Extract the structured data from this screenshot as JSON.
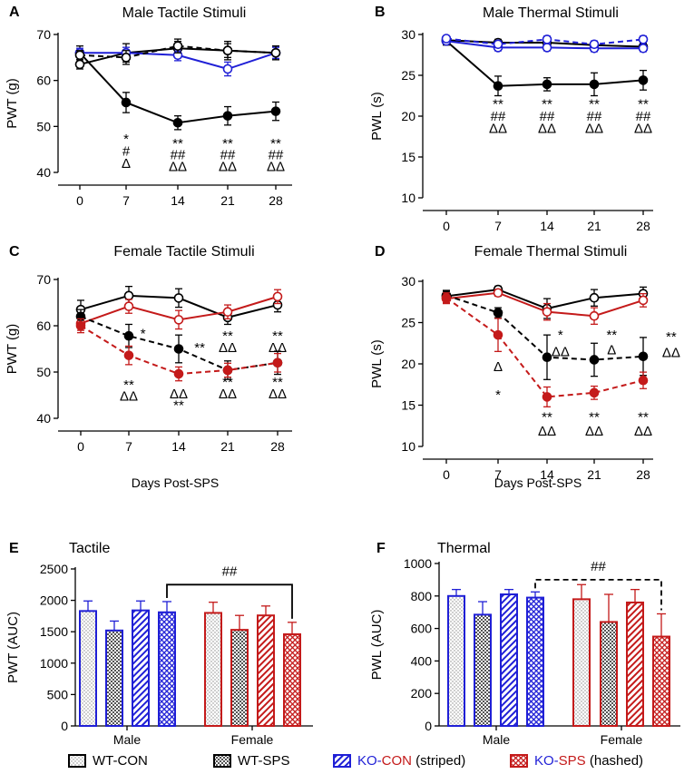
{
  "legend": [
    {
      "label": "WT-CON",
      "parts": [
        {
          "text": "WT-CON",
          "color": "#000000"
        }
      ],
      "key": "wtcon"
    },
    {
      "label": "WT-SPS",
      "parts": [
        {
          "text": "WT-SPS",
          "color": "#000000"
        }
      ],
      "key": "wtsps"
    },
    {
      "label": "KO-CON (striped)",
      "parts": [
        {
          "text": "KO-",
          "color": "#1f1fd6"
        },
        {
          "text": "CON",
          "color": "#c41a1a"
        },
        {
          "text": " (striped)",
          "color": "#000000"
        }
      ],
      "key": "kocon"
    },
    {
      "label": "KO-SPS (hashed)",
      "parts": [
        {
          "text": "KO-",
          "color": "#1f1fd6"
        },
        {
          "text": "SPS",
          "color": "#c41a1a"
        },
        {
          "text": " (hashed)",
          "color": "#000000"
        }
      ],
      "key": "kosps"
    }
  ],
  "colors": {
    "black": "#000000",
    "blue": "#1f1fd6",
    "red": "#c41a1a"
  },
  "chart_data": [
    {
      "id": "A",
      "panel_label": "A",
      "type": "line",
      "title": "Male Tactile Stimuli",
      "ylabel": "PWT (g)",
      "xlabel": "",
      "x": [
        0,
        7,
        14,
        21,
        28
      ],
      "ylim": [
        40,
        70
      ],
      "yticks": [
        40,
        50,
        60,
        70
      ],
      "series": [
        {
          "name": "WT-CON",
          "color": "#000000",
          "dashed": false,
          "open": true,
          "values": [
            63.5,
            66,
            67,
            66.5,
            66
          ],
          "err": [
            1,
            2,
            1.5,
            2,
            1.5
          ]
        },
        {
          "name": "WT-SPS",
          "color": "#000000",
          "dashed": false,
          "open": false,
          "values": [
            66,
            55.2,
            50.8,
            52.3,
            53.3
          ],
          "err": [
            1.5,
            2.2,
            1.5,
            2,
            2
          ]
        },
        {
          "name": "KO-CON",
          "color": "#1f1fd6",
          "dashed": false,
          "open": true,
          "values": [
            66,
            66,
            65.5,
            62.5,
            66
          ],
          "err": [
            1,
            1.2,
            1.2,
            1.5,
            1.2
          ]
        },
        {
          "name": "KO-SPS",
          "color": "#000000",
          "dashed": true,
          "open": true,
          "values": [
            65.5,
            65,
            67.5,
            66.5,
            66
          ],
          "err": [
            1,
            1.5,
            1.5,
            1.5,
            1.5
          ]
        }
      ],
      "annotations": [
        {
          "x": 7,
          "y": 47.5,
          "text": "*"
        },
        {
          "x": 7,
          "y": 44.8,
          "text": "#"
        },
        {
          "x": 7,
          "y": 42.2,
          "text": "Δ"
        },
        {
          "x": 14,
          "y": 46.5,
          "text": "**"
        },
        {
          "x": 14,
          "y": 44,
          "text": "##"
        },
        {
          "x": 14,
          "y": 41.5,
          "text": "ΔΔ"
        },
        {
          "x": 21,
          "y": 46.5,
          "text": "**"
        },
        {
          "x": 21,
          "y": 44,
          "text": "##"
        },
        {
          "x": 21,
          "y": 41.5,
          "text": "ΔΔ"
        },
        {
          "x": 28,
          "y": 46.5,
          "text": "**"
        },
        {
          "x": 28,
          "y": 44,
          "text": "##"
        },
        {
          "x": 28,
          "y": 41.5,
          "text": "ΔΔ"
        }
      ]
    },
    {
      "id": "B",
      "panel_label": "B",
      "type": "line",
      "title": "Male Thermal Stimuli",
      "ylabel": "PWL (s)",
      "xlabel": "",
      "x": [
        0,
        7,
        14,
        21,
        28
      ],
      "ylim": [
        10,
        30
      ],
      "yticks": [
        10,
        15,
        20,
        25,
        30
      ],
      "series": [
        {
          "name": "WT-CON",
          "color": "#000000",
          "dashed": false,
          "open": true,
          "values": [
            29.3,
            29.0,
            29.0,
            28.7,
            28.5
          ],
          "err": [
            0.4,
            0.4,
            0.4,
            0.4,
            0.4
          ]
        },
        {
          "name": "WT-SPS",
          "color": "#000000",
          "dashed": false,
          "open": false,
          "values": [
            29.2,
            23.7,
            23.9,
            23.9,
            24.4
          ],
          "err": [
            0.5,
            1.2,
            0.8,
            1.4,
            1.2
          ]
        },
        {
          "name": "KO-CON",
          "color": "#1f1fd6",
          "dashed": false,
          "open": true,
          "values": [
            29.2,
            28.4,
            28.4,
            28.3,
            28.3
          ],
          "err": [
            0.3,
            0.4,
            0.4,
            0.4,
            0.4
          ]
        },
        {
          "name": "KO-SPS",
          "color": "#1f1fd6",
          "dashed": true,
          "open": true,
          "values": [
            29.5,
            28.8,
            29.4,
            28.8,
            29.4
          ],
          "err": [
            0.3,
            0.4,
            0.4,
            0.4,
            0.4
          ]
        }
      ],
      "annotations": [
        {
          "x": 7,
          "y": 21.6,
          "text": "**"
        },
        {
          "x": 7,
          "y": 20.1,
          "text": "##"
        },
        {
          "x": 7,
          "y": 18.6,
          "text": "ΔΔ"
        },
        {
          "x": 14,
          "y": 21.6,
          "text": "**"
        },
        {
          "x": 14,
          "y": 20.1,
          "text": "##"
        },
        {
          "x": 14,
          "y": 18.6,
          "text": "ΔΔ"
        },
        {
          "x": 21,
          "y": 21.6,
          "text": "**"
        },
        {
          "x": 21,
          "y": 20.1,
          "text": "##"
        },
        {
          "x": 21,
          "y": 18.6,
          "text": "ΔΔ"
        },
        {
          "x": 28,
          "y": 21.6,
          "text": "**"
        },
        {
          "x": 28,
          "y": 20.1,
          "text": "##"
        },
        {
          "x": 28,
          "y": 18.6,
          "text": "ΔΔ"
        }
      ]
    },
    {
      "id": "C",
      "panel_label": "C",
      "type": "line",
      "title": "Female Tactile Stimuli",
      "ylabel": "PWT (g)",
      "xlabel": "Days Post-SPS",
      "x": [
        0,
        7,
        14,
        21,
        28
      ],
      "ylim": [
        40,
        70
      ],
      "yticks": [
        40,
        50,
        60,
        70
      ],
      "series": [
        {
          "name": "WT-CON",
          "color": "#000000",
          "dashed": false,
          "open": true,
          "values": [
            63.5,
            66.5,
            66,
            61.8,
            64.5
          ],
          "err": [
            2,
            2,
            2,
            1.5,
            1.5
          ]
        },
        {
          "name": "KO-CON",
          "color": "#c41a1a",
          "dashed": false,
          "open": true,
          "values": [
            60.5,
            64.2,
            61.3,
            63,
            66.3
          ],
          "err": [
            1.5,
            1.5,
            2,
            1.5,
            1.5
          ]
        },
        {
          "name": "WT-SPS",
          "color": "#000000",
          "dashed": true,
          "open": false,
          "values": [
            62,
            57.8,
            55,
            50.4,
            52
          ],
          "err": [
            1.5,
            2.5,
            3,
            2,
            2.5
          ]
        },
        {
          "name": "KO-SPS",
          "color": "#c41a1a",
          "dashed": true,
          "open": false,
          "values": [
            60,
            53.6,
            49.6,
            50.4,
            52
          ],
          "err": [
            1.5,
            2,
            1.5,
            1.5,
            2
          ]
        }
      ],
      "annotations": [
        {
          "x": 9,
          "y": 58.5,
          "text": "*"
        },
        {
          "x": 7,
          "y": 47.5,
          "text": "**"
        },
        {
          "x": 7,
          "y": 45,
          "text": "ΔΔ"
        },
        {
          "x": 17,
          "y": 55.5,
          "text": "**"
        },
        {
          "x": 14,
          "y": 45.5,
          "text": "ΔΔ"
        },
        {
          "x": 14,
          "y": 43,
          "text": "**"
        },
        {
          "x": 21,
          "y": 58,
          "text": "**"
        },
        {
          "x": 21,
          "y": 55.5,
          "text": "ΔΔ"
        },
        {
          "x": 21,
          "y": 48,
          "text": "**"
        },
        {
          "x": 21,
          "y": 45.5,
          "text": "ΔΔ"
        },
        {
          "x": 28,
          "y": 58,
          "text": "**"
        },
        {
          "x": 28,
          "y": 55.5,
          "text": "ΔΔ"
        },
        {
          "x": 28,
          "y": 48,
          "text": "**"
        },
        {
          "x": 28,
          "y": 45.5,
          "text": "ΔΔ"
        }
      ]
    },
    {
      "id": "D",
      "panel_label": "D",
      "type": "line",
      "title": "Female Thermal Stimuli",
      "ylabel": "PWL (s)",
      "xlabel": "Days Post-SPS",
      "x": [
        0,
        7,
        14,
        21,
        28
      ],
      "ylim": [
        10,
        30
      ],
      "yticks": [
        10,
        15,
        20,
        25,
        30
      ],
      "series": [
        {
          "name": "WT-CON",
          "color": "#000000",
          "dashed": false,
          "open": true,
          "values": [
            28.2,
            29,
            26.7,
            28,
            28.5
          ],
          "err": [
            0.6,
            0.4,
            1.2,
            1.0,
            0.8
          ]
        },
        {
          "name": "KO-CON",
          "color": "#c41a1a",
          "dashed": false,
          "open": true,
          "values": [
            27.9,
            28.6,
            26.3,
            25.8,
            27.7
          ],
          "err": [
            0.6,
            0.4,
            1.0,
            1.0,
            0.8
          ]
        },
        {
          "name": "WT-SPS",
          "color": "#000000",
          "dashed": true,
          "open": false,
          "values": [
            28.3,
            26.2,
            20.8,
            20.5,
            20.9
          ],
          "err": [
            0.6,
            0.6,
            2.7,
            2.0,
            2.3
          ]
        },
        {
          "name": "KO-SPS",
          "color": "#c41a1a",
          "dashed": true,
          "open": false,
          "values": [
            28,
            23.5,
            16,
            16.5,
            18
          ],
          "err": [
            0.6,
            2.0,
            1.2,
            0.8,
            1.0
          ]
        }
      ],
      "annotations": [
        {
          "x": 7,
          "y": 19.8,
          "text": "Δ"
        },
        {
          "x": 7,
          "y": 16.4,
          "text": "*"
        },
        {
          "x": 16,
          "y": 23.6,
          "text": "*"
        },
        {
          "x": 16,
          "y": 21.6,
          "text": "ΔΔ"
        },
        {
          "x": 23.5,
          "y": 23.6,
          "text": "**"
        },
        {
          "x": 23.5,
          "y": 21.8,
          "text": "Δ"
        },
        {
          "x": 32,
          "y": 23.4,
          "text": "**"
        },
        {
          "x": 32,
          "y": 21.5,
          "text": "ΔΔ"
        },
        {
          "x": 14,
          "y": 13.7,
          "text": "**"
        },
        {
          "x": 14,
          "y": 12,
          "text": "ΔΔ"
        },
        {
          "x": 21,
          "y": 13.7,
          "text": "**"
        },
        {
          "x": 21,
          "y": 12,
          "text": "ΔΔ"
        },
        {
          "x": 28,
          "y": 13.7,
          "text": "**"
        },
        {
          "x": 28,
          "y": 12,
          "text": "ΔΔ"
        }
      ]
    },
    {
      "id": "E",
      "panel_label": "E",
      "type": "bar",
      "title": "Tactile",
      "ylabel": "PWT (AUC)",
      "xlabel": "",
      "groups": [
        "Male",
        "Female"
      ],
      "ylim": [
        0,
        2500
      ],
      "yticks": [
        0,
        500,
        1000,
        1500,
        2000,
        2500
      ],
      "bars": [
        {
          "group": "Male",
          "name": "WT-CON",
          "value": 1830,
          "err": 160,
          "color": "#1f1fd6",
          "pattern": "dots"
        },
        {
          "group": "Male",
          "name": "WT-SPS",
          "value": 1520,
          "err": 150,
          "color": "#1f1fd6",
          "pattern": "check"
        },
        {
          "group": "Male",
          "name": "KO-CON",
          "value": 1840,
          "err": 150,
          "color": "#1f1fd6",
          "pattern": "stripe"
        },
        {
          "group": "Male",
          "name": "KO-SPS",
          "value": 1810,
          "err": 170,
          "color": "#1f1fd6",
          "pattern": "hash"
        },
        {
          "group": "Female",
          "name": "WT-CON",
          "value": 1800,
          "err": 170,
          "color": "#c41a1a",
          "pattern": "dots"
        },
        {
          "group": "Female",
          "name": "WT-SPS",
          "value": 1530,
          "err": 230,
          "color": "#c41a1a",
          "pattern": "check"
        },
        {
          "group": "Female",
          "name": "KO-CON",
          "value": 1760,
          "err": 150,
          "color": "#c41a1a",
          "pattern": "stripe"
        },
        {
          "group": "Female",
          "name": "KO-SPS",
          "value": 1460,
          "err": 190,
          "color": "#c41a1a",
          "pattern": "hash"
        }
      ],
      "bracket": {
        "from": 3,
        "to": 7,
        "value": 2250,
        "text": "##",
        "dashed": false
      }
    },
    {
      "id": "F",
      "panel_label": "F",
      "type": "bar",
      "title": "Thermal",
      "ylabel": "PWL (AUC)",
      "xlabel": "",
      "groups": [
        "Male",
        "Female"
      ],
      "ylim": [
        0,
        1000
      ],
      "yticks": [
        0,
        200,
        400,
        600,
        800,
        1000
      ],
      "bars": [
        {
          "group": "Male",
          "name": "WT-CON",
          "value": 800,
          "err": 40,
          "color": "#1f1fd6",
          "pattern": "dots"
        },
        {
          "group": "Male",
          "name": "WT-SPS",
          "value": 685,
          "err": 80,
          "color": "#1f1fd6",
          "pattern": "check"
        },
        {
          "group": "Male",
          "name": "KO-CON",
          "value": 810,
          "err": 30,
          "color": "#1f1fd6",
          "pattern": "stripe"
        },
        {
          "group": "Male",
          "name": "KO-SPS",
          "value": 790,
          "err": 35,
          "color": "#1f1fd6",
          "pattern": "hash"
        },
        {
          "group": "Female",
          "name": "WT-CON",
          "value": 780,
          "err": 90,
          "color": "#c41a1a",
          "pattern": "dots"
        },
        {
          "group": "Female",
          "name": "WT-SPS",
          "value": 640,
          "err": 170,
          "color": "#c41a1a",
          "pattern": "check"
        },
        {
          "group": "Female",
          "name": "KO-CON",
          "value": 760,
          "err": 80,
          "color": "#c41a1a",
          "pattern": "stripe"
        },
        {
          "group": "Female",
          "name": "KO-SPS",
          "value": 550,
          "err": 140,
          "color": "#c41a1a",
          "pattern": "hash"
        }
      ],
      "bracket": {
        "from": 3,
        "to": 7,
        "value": 900,
        "text": "##",
        "dashed": true
      }
    }
  ]
}
